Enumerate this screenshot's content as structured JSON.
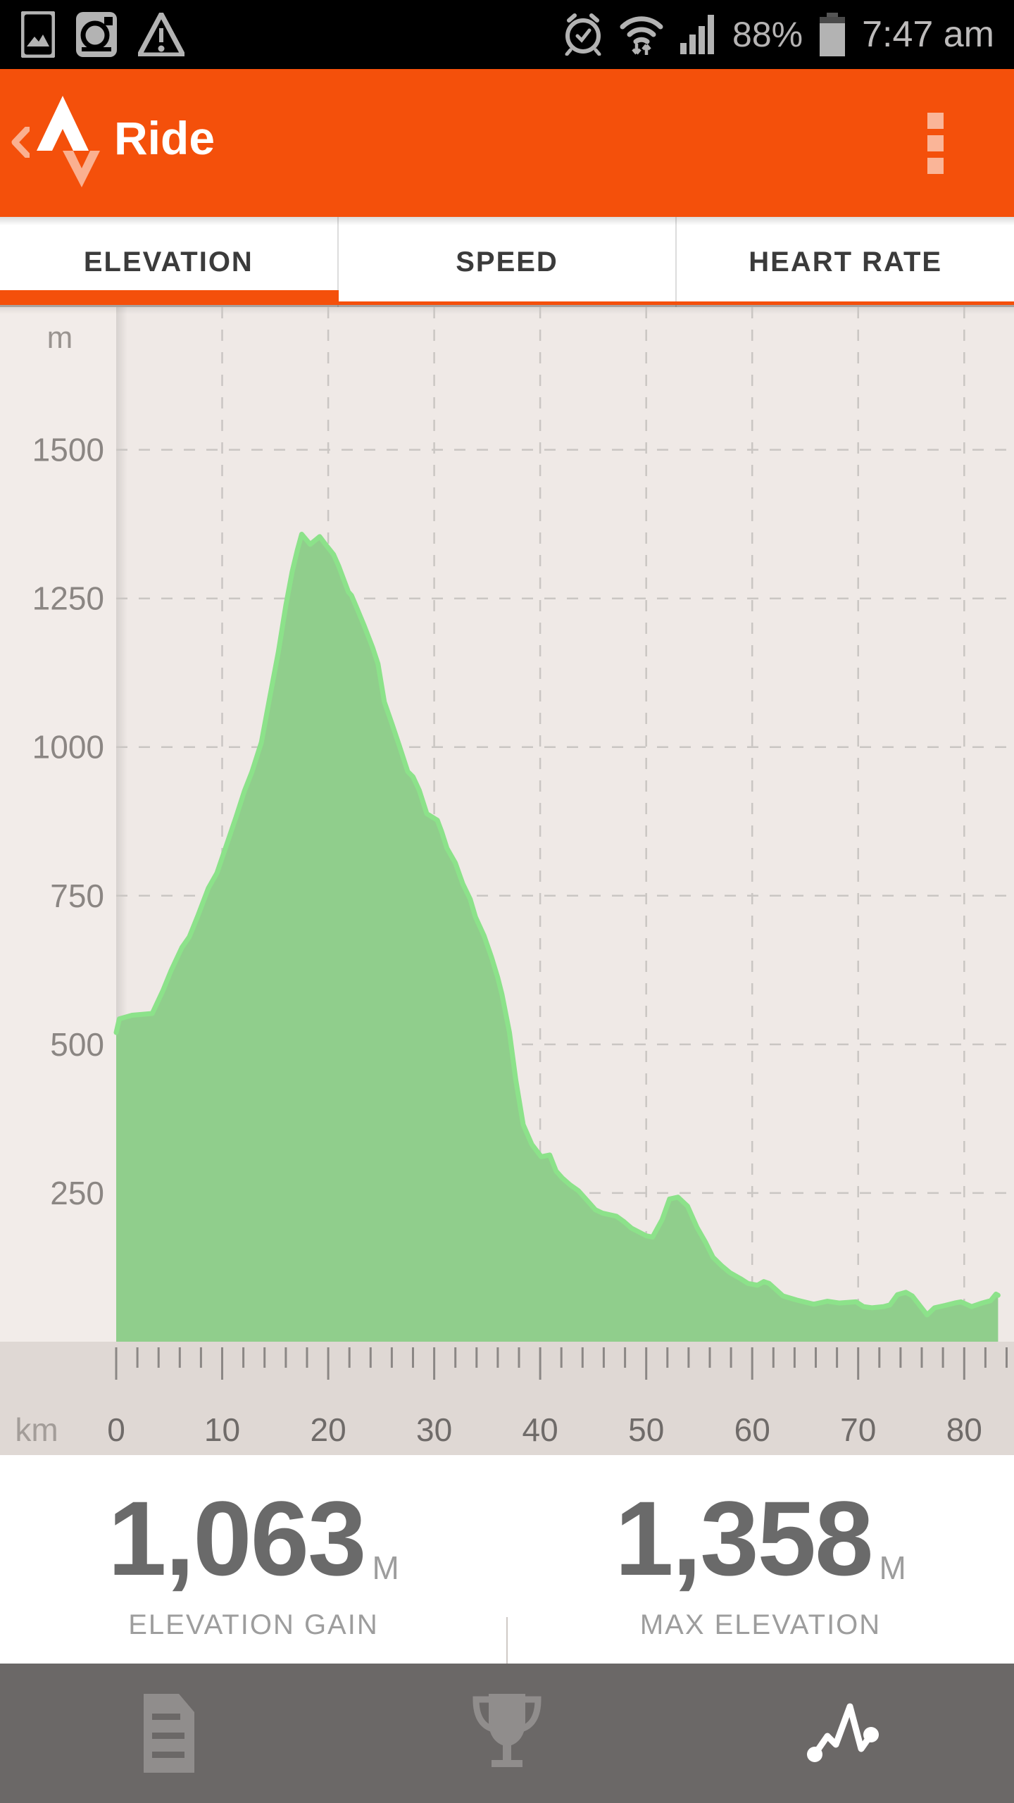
{
  "status_bar": {
    "time": "7:47 am",
    "battery_percent": "88%",
    "left_icons": [
      "gallery-icon",
      "camera-icon",
      "warning-icon"
    ],
    "right_icons": [
      "alarm-icon",
      "wifi-icon",
      "signal-icon",
      "battery-icon"
    ]
  },
  "header": {
    "title": "Ride",
    "accent_color": "#f4500b",
    "icons": [
      "back-chevron-icon",
      "strava-logo",
      "overflow-menu-icon"
    ]
  },
  "tabs": {
    "items": [
      {
        "label": "ELEVATION",
        "active": true
      },
      {
        "label": "SPEED",
        "active": false
      },
      {
        "label": "HEART RATE",
        "active": false
      }
    ]
  },
  "chart_data": {
    "type": "area",
    "title": "Elevation profile of ride",
    "x_unit": "km",
    "y_unit": "m",
    "xlim": [
      0,
      84.7
    ],
    "ylim": [
      0,
      1740
    ],
    "x_major_ticks": [
      0,
      10,
      20,
      30,
      40,
      50,
      60,
      70,
      80
    ],
    "x_minor_step": 2,
    "y_gridlines": [
      250,
      500,
      750,
      1000,
      1250,
      1500
    ],
    "grid": "dashed",
    "legend": "none",
    "colors": {
      "fill": "#90ce8c",
      "line": "#8ce28a",
      "grid": "#cac6c3",
      "plot_bg": "#efe9e6",
      "gutter_bg": "#f2ece9",
      "axis_bg": "#dfd8d4",
      "tick": "#8b8785"
    },
    "series": [
      {
        "name": "elevation_m_vs_km",
        "points": [
          [
            0,
            520
          ],
          [
            0.3,
            543
          ],
          [
            1.5,
            549
          ],
          [
            3.4,
            552
          ],
          [
            4.4,
            590
          ],
          [
            5.2,
            625
          ],
          [
            6.2,
            663
          ],
          [
            6.9,
            681
          ],
          [
            7.7,
            716
          ],
          [
            8.7,
            763
          ],
          [
            9.5,
            788
          ],
          [
            10.4,
            835
          ],
          [
            11.3,
            882
          ],
          [
            12.1,
            926
          ],
          [
            12.8,
            958
          ],
          [
            13.7,
            1008
          ],
          [
            14.5,
            1085
          ],
          [
            15.3,
            1160
          ],
          [
            16.0,
            1238
          ],
          [
            16.6,
            1295
          ],
          [
            17.1,
            1332
          ],
          [
            17.5,
            1358
          ],
          [
            18.3,
            1341
          ],
          [
            19.2,
            1354
          ],
          [
            19.7,
            1342
          ],
          [
            20.5,
            1324
          ],
          [
            21.0,
            1304
          ],
          [
            21.9,
            1261
          ],
          [
            22.2,
            1255
          ],
          [
            22.7,
            1234
          ],
          [
            23.4,
            1204
          ],
          [
            24.2,
            1167
          ],
          [
            24.7,
            1140
          ],
          [
            25.3,
            1076
          ],
          [
            26.0,
            1040
          ],
          [
            26.7,
            1003
          ],
          [
            27.5,
            959
          ],
          [
            28.0,
            950
          ],
          [
            28.6,
            927
          ],
          [
            29.3,
            888
          ],
          [
            30.3,
            877
          ],
          [
            30.7,
            858
          ],
          [
            31.2,
            830
          ],
          [
            32.0,
            805
          ],
          [
            32.7,
            770
          ],
          [
            33.4,
            744
          ],
          [
            33.9,
            714
          ],
          [
            34.7,
            683
          ],
          [
            35.4,
            647
          ],
          [
            36.0,
            612
          ],
          [
            36.4,
            584
          ],
          [
            37.1,
            520
          ],
          [
            37.7,
            440
          ],
          [
            38.4,
            365
          ],
          [
            39.2,
            332
          ],
          [
            40.1,
            311
          ],
          [
            40.9,
            314
          ],
          [
            41.5,
            287
          ],
          [
            42.1,
            275
          ],
          [
            42.8,
            264
          ],
          [
            43.6,
            254
          ],
          [
            44.4,
            238
          ],
          [
            45.2,
            222
          ],
          [
            45.9,
            216
          ],
          [
            47.2,
            211
          ],
          [
            47.9,
            202
          ],
          [
            48.6,
            191
          ],
          [
            50.0,
            178
          ],
          [
            50.6,
            176
          ],
          [
            51.5,
            205
          ],
          [
            52.2,
            240
          ],
          [
            53.0,
            243
          ],
          [
            53.9,
            228
          ],
          [
            54.8,
            192
          ],
          [
            55.6,
            167
          ],
          [
            56.3,
            142
          ],
          [
            57.1,
            128
          ],
          [
            57.9,
            116
          ],
          [
            58.9,
            106
          ],
          [
            59.6,
            98
          ],
          [
            60.5,
            95
          ],
          [
            61.1,
            101
          ],
          [
            61.6,
            98
          ],
          [
            62.9,
            77
          ],
          [
            64.2,
            70
          ],
          [
            65.8,
            63
          ],
          [
            67.1,
            68
          ],
          [
            68.2,
            65
          ],
          [
            69.8,
            67
          ],
          [
            70.5,
            59
          ],
          [
            71.3,
            57
          ],
          [
            72.4,
            59
          ],
          [
            73.0,
            62
          ],
          [
            73.7,
            79
          ],
          [
            74.5,
            83
          ],
          [
            75.1,
            77
          ],
          [
            76.5,
            45
          ],
          [
            77.2,
            57
          ],
          [
            78.2,
            61
          ],
          [
            79.1,
            65
          ],
          [
            79.7,
            67
          ],
          [
            80.7,
            59
          ],
          [
            81.7,
            65
          ],
          [
            82.5,
            69
          ],
          [
            83.0,
            80
          ],
          [
            83.2,
            78
          ]
        ]
      }
    ]
  },
  "stats": {
    "items": [
      {
        "value": "1,063",
        "unit": "M",
        "label": "ELEVATION GAIN"
      },
      {
        "value": "1,358",
        "unit": "M",
        "label": "MAX ELEVATION"
      }
    ]
  },
  "nav": {
    "items": [
      {
        "name": "details",
        "icon": "document-icon",
        "active": false
      },
      {
        "name": "achievements",
        "icon": "trophy-icon",
        "active": false
      },
      {
        "name": "analysis",
        "icon": "pulse-icon",
        "active": true
      }
    ]
  }
}
